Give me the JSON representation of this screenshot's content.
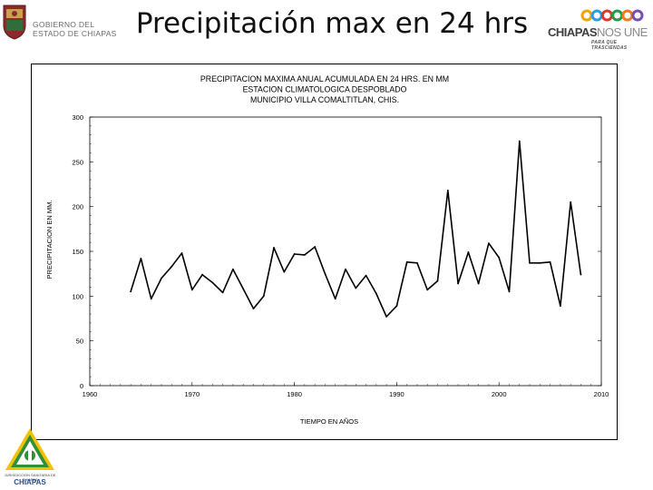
{
  "header": {
    "gov_line1": "GOBIERNO DEL",
    "gov_line2": "ESTADO DE CHIAPAS",
    "title": "Precipitación max en 24 hrs",
    "brand_main": "CHIAPAS",
    "brand_sub": "NOS UNE",
    "brand_tagline": "PARA QUE TRASCIENDAS",
    "ring_colors": [
      "#f0a400",
      "#2c9be3",
      "#e0362c",
      "#1f9d48",
      "#f07a1d",
      "#7a4db3"
    ]
  },
  "footer": {
    "org_text": "JURISDICCIÓN SANITARIA DE CHIAPAS",
    "brand": "CHIAPAS"
  },
  "chart_data": {
    "type": "line",
    "title_lines": [
      "PRECIPITACION MAXIMA ANUAL ACUMULADA EN 24 HRS. EN MM",
      "ESTACION CLIMATOLOGICA DESPOBLADO",
      "MUNICIPIO VILLA COMALTITLAN, CHIS."
    ],
    "xlabel": "TIEMPO EN AÑOS",
    "ylabel": "PRECIPITACION EN MM.",
    "xlim": [
      1960,
      2010
    ],
    "ylim": [
      0,
      300
    ],
    "xticks": [
      1960,
      1970,
      1980,
      1990,
      2000,
      2010
    ],
    "yticks": [
      0,
      50,
      100,
      150,
      200,
      250,
      300
    ],
    "grid": false,
    "series": [
      {
        "color": "#000000",
        "x": [
          1964,
          1965,
          1966,
          1967,
          1968,
          1969,
          1970,
          1971,
          1972,
          1973,
          1974,
          1975,
          1976,
          1977,
          1978,
          1979,
          1980,
          1981,
          1982,
          1983,
          1984,
          1985,
          1986,
          1987,
          1988,
          1989,
          1990,
          1991,
          1992,
          1993,
          1994,
          1995,
          1996,
          1997,
          1998,
          1999,
          2000,
          2001,
          2002,
          2003,
          2004,
          2005,
          2006,
          2007,
          2008
        ],
        "y": [
          105,
          142,
          97,
          120,
          133,
          148,
          107,
          124,
          115,
          104,
          130,
          108,
          86,
          100,
          154,
          127,
          147,
          146,
          155,
          125,
          97,
          130,
          109,
          123,
          103,
          77,
          89,
          138,
          137,
          107,
          117,
          218,
          114,
          149,
          114,
          159,
          143,
          105,
          273,
          137,
          137,
          138,
          89,
          205,
          124
        ]
      }
    ]
  }
}
